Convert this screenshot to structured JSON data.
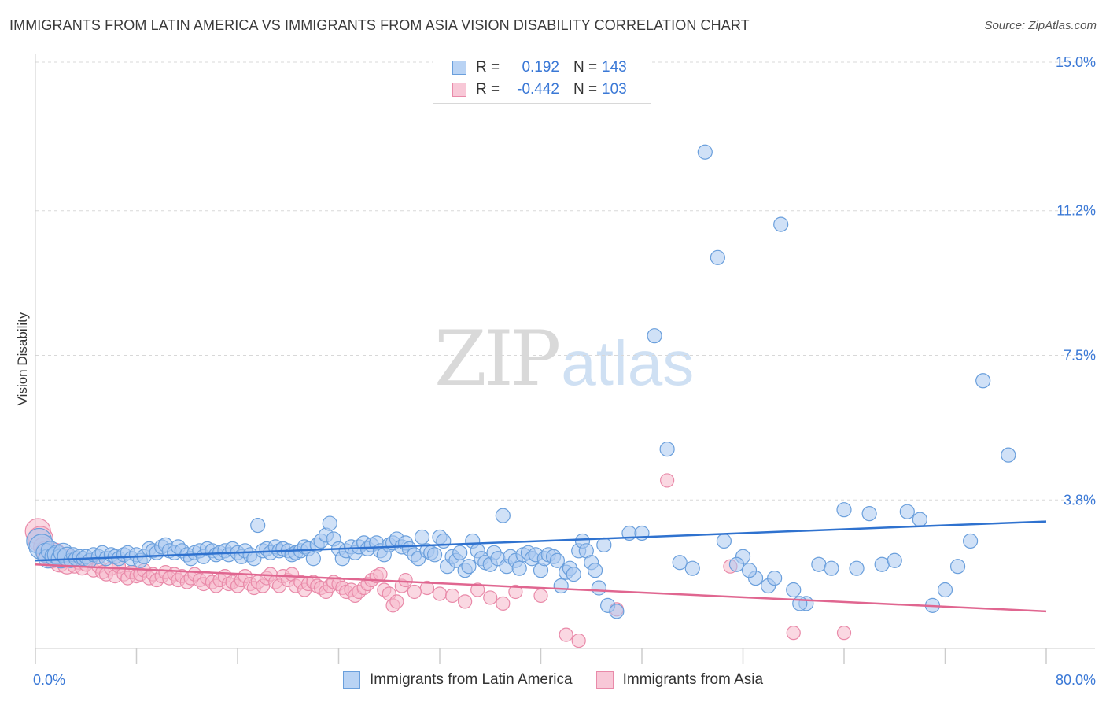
{
  "title": "IMMIGRANTS FROM LATIN AMERICA VS IMMIGRANTS FROM ASIA VISION DISABILITY CORRELATION CHART",
  "source": "Source: ZipAtlas.com",
  "watermark": {
    "zip": "ZIP",
    "atlas": "atlas"
  },
  "legend": {
    "r_label": "R =",
    "n_label": "N =",
    "rows": [
      {
        "r": "0.192",
        "n": "143"
      },
      {
        "r": "-0.442",
        "n": "103"
      }
    ]
  },
  "colors": {
    "blue_fill": "#a9c8f0",
    "blue_stroke": "#6a9fdc",
    "blue_line": "#2f72cf",
    "pink_fill": "#f5b8cb",
    "pink_stroke": "#e98aa9",
    "pink_line": "#e06690",
    "grid": "#d8d8d8",
    "tick_label": "#3a78d6"
  },
  "chart_data": {
    "type": "scatter",
    "title": "IMMIGRANTS FROM LATIN AMERICA VS IMMIGRANTS FROM ASIA VISION DISABILITY CORRELATION CHART",
    "xlabel": "",
    "ylabel": "Vision Disability",
    "xlim": [
      0,
      80
    ],
    "ylim": [
      0,
      15.0
    ],
    "x_tick_labels": [
      "0.0%",
      "80.0%"
    ],
    "y_ticks": [
      {
        "value": 3.8,
        "label": "3.8%"
      },
      {
        "value": 7.5,
        "label": "7.5%"
      },
      {
        "value": 11.2,
        "label": "11.2%"
      },
      {
        "value": 15.0,
        "label": "15.0%"
      }
    ],
    "grid": "horizontal dashed",
    "legend_position": "top-center",
    "series": [
      {
        "name": "Immigrants from Latin America",
        "color": "#a9c8f0",
        "r": 0.192,
        "n": 143,
        "trend": {
          "x": [
            0,
            80
          ],
          "y": [
            2.25,
            3.25
          ]
        },
        "points": [
          [
            0.3,
            2.75
          ],
          [
            0.5,
            2.6
          ],
          [
            0.8,
            2.45
          ],
          [
            1.0,
            2.3
          ],
          [
            1.2,
            2.5
          ],
          [
            1.5,
            2.35
          ],
          [
            1.7,
            2.4
          ],
          [
            2.0,
            2.3
          ],
          [
            2.2,
            2.45
          ],
          [
            2.5,
            2.35
          ],
          [
            2.8,
            2.25
          ],
          [
            3.0,
            2.4
          ],
          [
            3.2,
            2.3
          ],
          [
            3.5,
            2.35
          ],
          [
            3.8,
            2.3
          ],
          [
            4.0,
            2.35
          ],
          [
            4.3,
            2.25
          ],
          [
            4.6,
            2.4
          ],
          [
            5.0,
            2.35
          ],
          [
            5.3,
            2.45
          ],
          [
            5.6,
            2.3
          ],
          [
            6.0,
            2.4
          ],
          [
            6.3,
            2.35
          ],
          [
            6.6,
            2.3
          ],
          [
            7.0,
            2.4
          ],
          [
            7.3,
            2.45
          ],
          [
            7.6,
            2.3
          ],
          [
            8.0,
            2.4
          ],
          [
            8.3,
            2.25
          ],
          [
            8.6,
            2.35
          ],
          [
            9.0,
            2.55
          ],
          [
            9.3,
            2.5
          ],
          [
            9.6,
            2.45
          ],
          [
            10.0,
            2.6
          ],
          [
            10.3,
            2.65
          ],
          [
            10.6,
            2.5
          ],
          [
            11.0,
            2.45
          ],
          [
            11.3,
            2.6
          ],
          [
            11.6,
            2.5
          ],
          [
            12.0,
            2.4
          ],
          [
            12.3,
            2.3
          ],
          [
            12.6,
            2.45
          ],
          [
            13.0,
            2.5
          ],
          [
            13.3,
            2.35
          ],
          [
            13.6,
            2.55
          ],
          [
            14.0,
            2.5
          ],
          [
            14.3,
            2.4
          ],
          [
            14.6,
            2.45
          ],
          [
            15.0,
            2.5
          ],
          [
            15.3,
            2.4
          ],
          [
            15.6,
            2.55
          ],
          [
            16.0,
            2.45
          ],
          [
            16.3,
            2.35
          ],
          [
            16.6,
            2.5
          ],
          [
            17.0,
            2.4
          ],
          [
            17.3,
            2.3
          ],
          [
            17.6,
            3.15
          ],
          [
            18.0,
            2.5
          ],
          [
            18.3,
            2.55
          ],
          [
            18.6,
            2.45
          ],
          [
            19.0,
            2.6
          ],
          [
            19.3,
            2.5
          ],
          [
            19.6,
            2.55
          ],
          [
            20.0,
            2.5
          ],
          [
            20.3,
            2.4
          ],
          [
            20.6,
            2.45
          ],
          [
            21.0,
            2.5
          ],
          [
            21.3,
            2.6
          ],
          [
            21.6,
            2.55
          ],
          [
            22.0,
            2.3
          ],
          [
            22.3,
            2.65
          ],
          [
            22.6,
            2.75
          ],
          [
            23.0,
            2.9
          ],
          [
            23.3,
            3.2
          ],
          [
            23.6,
            2.8
          ],
          [
            24.0,
            2.55
          ],
          [
            24.3,
            2.3
          ],
          [
            24.6,
            2.5
          ],
          [
            25.0,
            2.6
          ],
          [
            25.3,
            2.45
          ],
          [
            25.6,
            2.6
          ],
          [
            26.0,
            2.7
          ],
          [
            26.3,
            2.55
          ],
          [
            26.6,
            2.65
          ],
          [
            27.0,
            2.7
          ],
          [
            27.3,
            2.5
          ],
          [
            27.6,
            2.4
          ],
          [
            28.0,
            2.65
          ],
          [
            28.3,
            2.7
          ],
          [
            28.6,
            2.8
          ],
          [
            29.0,
            2.6
          ],
          [
            29.3,
            2.7
          ],
          [
            29.6,
            2.55
          ],
          [
            30.0,
            2.4
          ],
          [
            30.3,
            2.3
          ],
          [
            30.6,
            2.85
          ],
          [
            31.0,
            2.5
          ],
          [
            31.3,
            2.45
          ],
          [
            31.6,
            2.4
          ],
          [
            32.0,
            2.85
          ],
          [
            32.3,
            2.75
          ],
          [
            32.6,
            2.1
          ],
          [
            33.0,
            2.35
          ],
          [
            33.3,
            2.25
          ],
          [
            33.6,
            2.45
          ],
          [
            34.0,
            2.0
          ],
          [
            34.3,
            2.1
          ],
          [
            34.6,
            2.75
          ],
          [
            35.0,
            2.5
          ],
          [
            35.3,
            2.3
          ],
          [
            35.6,
            2.2
          ],
          [
            36.0,
            2.15
          ],
          [
            36.3,
            2.45
          ],
          [
            36.6,
            2.3
          ],
          [
            37.0,
            3.4
          ],
          [
            37.3,
            2.1
          ],
          [
            37.6,
            2.35
          ],
          [
            38.0,
            2.25
          ],
          [
            38.3,
            2.05
          ],
          [
            38.6,
            2.4
          ],
          [
            39.0,
            2.45
          ],
          [
            39.3,
            2.3
          ],
          [
            39.6,
            2.4
          ],
          [
            40.0,
            2.0
          ],
          [
            40.3,
            2.3
          ],
          [
            40.6,
            2.4
          ],
          [
            41.0,
            2.35
          ],
          [
            41.3,
            2.25
          ],
          [
            41.6,
            1.6
          ],
          [
            42.0,
            1.95
          ],
          [
            42.3,
            2.05
          ],
          [
            42.6,
            1.9
          ],
          [
            43.0,
            2.5
          ],
          [
            43.3,
            2.75
          ],
          [
            43.6,
            2.5
          ],
          [
            44.0,
            2.2
          ],
          [
            44.3,
            2.0
          ],
          [
            44.6,
            1.55
          ],
          [
            45.0,
            2.65
          ],
          [
            45.3,
            1.1
          ],
          [
            46.0,
            0.95
          ],
          [
            47.0,
            2.95
          ],
          [
            48.0,
            2.95
          ],
          [
            49.0,
            8.0
          ],
          [
            50.0,
            5.1
          ],
          [
            51.0,
            2.2
          ],
          [
            52.0,
            2.05
          ],
          [
            53.0,
            12.7
          ],
          [
            54.0,
            10.0
          ],
          [
            56.0,
            2.35
          ],
          [
            57.0,
            1.8
          ],
          [
            58.0,
            1.6
          ],
          [
            59.0,
            10.85
          ],
          [
            60.0,
            1.5
          ],
          [
            61.0,
            1.15
          ],
          [
            62.0,
            2.15
          ],
          [
            63.0,
            2.05
          ],
          [
            64.0,
            3.55
          ],
          [
            65.0,
            2.05
          ],
          [
            66.0,
            3.45
          ],
          [
            67.0,
            2.15
          ],
          [
            68.0,
            2.25
          ],
          [
            69.0,
            3.5
          ],
          [
            70.0,
            3.3
          ],
          [
            71.0,
            1.1
          ],
          [
            72.0,
            1.5
          ],
          [
            73.0,
            2.1
          ],
          [
            74.0,
            2.75
          ],
          [
            75.0,
            6.85
          ],
          [
            77.0,
            4.95
          ],
          [
            54.5,
            2.75
          ],
          [
            55.5,
            2.15
          ],
          [
            56.5,
            2.0
          ],
          [
            58.5,
            1.8
          ],
          [
            60.5,
            1.15
          ]
        ]
      },
      {
        "name": "Immigrants from Asia",
        "color": "#f5b8cb",
        "r": -0.442,
        "n": 103,
        "trend": {
          "x": [
            0,
            80
          ],
          "y": [
            2.15,
            0.95
          ]
        },
        "points": [
          [
            0.2,
            3.0
          ],
          [
            0.4,
            2.8
          ],
          [
            0.6,
            2.6
          ],
          [
            0.8,
            2.5
          ],
          [
            1.0,
            2.4
          ],
          [
            1.3,
            2.3
          ],
          [
            1.6,
            2.45
          ],
          [
            1.9,
            2.2
          ],
          [
            2.2,
            2.3
          ],
          [
            2.5,
            2.15
          ],
          [
            2.8,
            2.35
          ],
          [
            3.1,
            2.1
          ],
          [
            3.4,
            2.2
          ],
          [
            3.7,
            2.05
          ],
          [
            4.0,
            2.15
          ],
          [
            4.3,
            2.25
          ],
          [
            4.6,
            2.0
          ],
          [
            5.0,
            2.1
          ],
          [
            5.3,
            1.95
          ],
          [
            5.6,
            1.9
          ],
          [
            6.0,
            2.05
          ],
          [
            6.3,
            1.85
          ],
          [
            6.6,
            2.1
          ],
          [
            7.0,
            1.9
          ],
          [
            7.3,
            1.8
          ],
          [
            7.6,
            1.95
          ],
          [
            8.0,
            1.85
          ],
          [
            8.3,
            1.9
          ],
          [
            8.6,
            2.0
          ],
          [
            9.0,
            1.8
          ],
          [
            9.3,
            1.9
          ],
          [
            9.6,
            1.75
          ],
          [
            10.0,
            1.85
          ],
          [
            10.3,
            1.95
          ],
          [
            10.6,
            1.8
          ],
          [
            11.0,
            1.9
          ],
          [
            11.3,
            1.75
          ],
          [
            11.6,
            1.85
          ],
          [
            12.0,
            1.7
          ],
          [
            12.3,
            1.8
          ],
          [
            12.6,
            1.9
          ],
          [
            13.0,
            1.75
          ],
          [
            13.3,
            1.65
          ],
          [
            13.6,
            1.8
          ],
          [
            14.0,
            1.7
          ],
          [
            14.3,
            1.6
          ],
          [
            14.6,
            1.75
          ],
          [
            15.0,
            1.85
          ],
          [
            15.3,
            1.65
          ],
          [
            15.6,
            1.7
          ],
          [
            16.0,
            1.6
          ],
          [
            16.3,
            1.75
          ],
          [
            16.6,
            1.85
          ],
          [
            17.0,
            1.65
          ],
          [
            17.3,
            1.55
          ],
          [
            17.6,
            1.7
          ],
          [
            18.0,
            1.6
          ],
          [
            18.3,
            1.8
          ],
          [
            18.6,
            1.9
          ],
          [
            19.0,
            1.7
          ],
          [
            19.3,
            1.6
          ],
          [
            19.6,
            1.85
          ],
          [
            20.0,
            1.75
          ],
          [
            20.3,
            1.9
          ],
          [
            20.6,
            1.6
          ],
          [
            21.0,
            1.7
          ],
          [
            21.3,
            1.5
          ],
          [
            21.6,
            1.65
          ],
          [
            22.0,
            1.7
          ],
          [
            22.3,
            1.6
          ],
          [
            22.6,
            1.55
          ],
          [
            23.0,
            1.45
          ],
          [
            23.3,
            1.6
          ],
          [
            23.6,
            1.7
          ],
          [
            24.0,
            1.65
          ],
          [
            24.3,
            1.55
          ],
          [
            24.6,
            1.45
          ],
          [
            25.0,
            1.5
          ],
          [
            25.3,
            1.35
          ],
          [
            25.6,
            1.45
          ],
          [
            26.0,
            1.55
          ],
          [
            26.3,
            1.65
          ],
          [
            26.6,
            1.75
          ],
          [
            27.0,
            1.85
          ],
          [
            27.3,
            1.9
          ],
          [
            27.6,
            1.5
          ],
          [
            28.0,
            1.4
          ],
          [
            28.3,
            1.1
          ],
          [
            28.6,
            1.2
          ],
          [
            29.0,
            1.6
          ],
          [
            29.3,
            1.75
          ],
          [
            30.0,
            1.45
          ],
          [
            31.0,
            1.55
          ],
          [
            32.0,
            1.4
          ],
          [
            33.0,
            1.35
          ],
          [
            34.0,
            1.2
          ],
          [
            35.0,
            1.5
          ],
          [
            36.0,
            1.3
          ],
          [
            37.0,
            1.15
          ],
          [
            38.0,
            1.45
          ],
          [
            40.0,
            1.35
          ],
          [
            42.0,
            0.35
          ],
          [
            43.0,
            0.2
          ],
          [
            46.0,
            1.0
          ],
          [
            50.0,
            4.3
          ],
          [
            55.0,
            2.1
          ],
          [
            60.0,
            0.4
          ],
          [
            64.0,
            0.4
          ]
        ]
      }
    ]
  },
  "bottom_legend": [
    "Immigrants from Latin America",
    "Immigrants from Asia"
  ]
}
